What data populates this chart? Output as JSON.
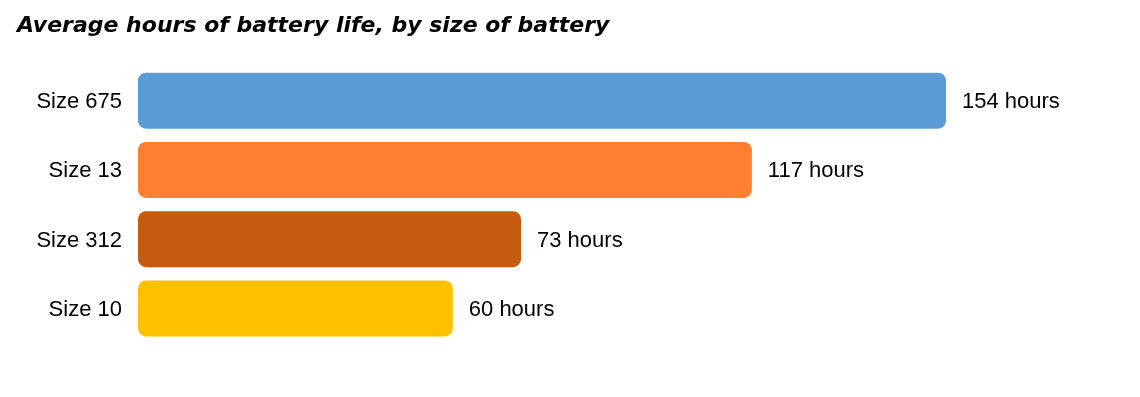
{
  "chart_data": {
    "type": "bar",
    "orientation": "horizontal",
    "title": "Average hours of battery life, by size of battery",
    "categories": [
      "Size 675",
      "Size 13",
      "Size 312",
      "Size 10"
    ],
    "values": [
      154,
      117,
      73,
      60
    ],
    "colors": [
      "#5b9bd5",
      "#fd7f2f",
      "#c55a11",
      "#ffc000"
    ],
    "value_labels": [
      "154 hours",
      "117 hours",
      "73 hours",
      "60 hours"
    ]
  }
}
